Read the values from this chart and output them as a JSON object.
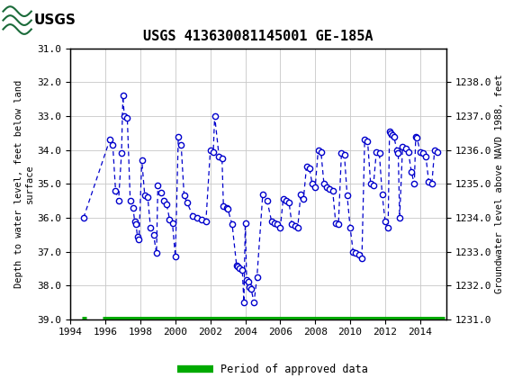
{
  "title": "USGS 413630081145001 GE-185A",
  "ylabel_left": "Depth to water level, feet below land\nsurface",
  "ylabel_right": "Groundwater level above NAVD 1988, feet",
  "ylim_left": [
    39.0,
    31.0
  ],
  "ylim_right": [
    1231.0,
    1239.0
  ],
  "xlim": [
    1994,
    2015.5
  ],
  "yticks_left": [
    31.0,
    32.0,
    33.0,
    34.0,
    35.0,
    36.0,
    37.0,
    38.0,
    39.0
  ],
  "yticks_right": [
    1231.0,
    1232.0,
    1233.0,
    1234.0,
    1235.0,
    1236.0,
    1237.0,
    1238.0
  ],
  "xticks": [
    1994,
    1996,
    1998,
    2000,
    2002,
    2004,
    2006,
    2008,
    2010,
    2012,
    2014
  ],
  "header_color": "#1b6b3a",
  "data_color": "#0000cc",
  "approved_color": "#00aa00",
  "background_color": "#ffffff",
  "grid_color": "#c8c8c8",
  "data_points": [
    [
      1994.75,
      36.0
    ],
    [
      1996.25,
      33.7
    ],
    [
      1996.42,
      33.85
    ],
    [
      1996.58,
      35.2
    ],
    [
      1996.75,
      35.5
    ],
    [
      1996.92,
      34.1
    ],
    [
      1997.0,
      32.4
    ],
    [
      1997.08,
      33.0
    ],
    [
      1997.25,
      33.05
    ],
    [
      1997.42,
      35.5
    ],
    [
      1997.58,
      35.7
    ],
    [
      1997.67,
      36.1
    ],
    [
      1997.75,
      36.2
    ],
    [
      1997.83,
      36.55
    ],
    [
      1997.92,
      36.65
    ],
    [
      1998.08,
      34.3
    ],
    [
      1998.25,
      35.35
    ],
    [
      1998.42,
      35.4
    ],
    [
      1998.58,
      36.3
    ],
    [
      1998.75,
      36.5
    ],
    [
      1998.92,
      37.05
    ],
    [
      1999.0,
      35.05
    ],
    [
      1999.17,
      35.25
    ],
    [
      1999.33,
      35.5
    ],
    [
      1999.5,
      35.6
    ],
    [
      1999.67,
      36.05
    ],
    [
      1999.83,
      36.15
    ],
    [
      2000.0,
      37.15
    ],
    [
      2000.17,
      33.6
    ],
    [
      2000.33,
      33.85
    ],
    [
      2000.5,
      35.35
    ],
    [
      2000.67,
      35.55
    ],
    [
      2001.0,
      35.95
    ],
    [
      2001.25,
      36.0
    ],
    [
      2001.5,
      36.05
    ],
    [
      2001.75,
      36.1
    ],
    [
      2002.0,
      34.0
    ],
    [
      2002.17,
      34.05
    ],
    [
      2002.25,
      33.0
    ],
    [
      2002.5,
      34.2
    ],
    [
      2002.67,
      34.25
    ],
    [
      2002.75,
      35.65
    ],
    [
      2002.92,
      35.7
    ],
    [
      2003.0,
      35.75
    ],
    [
      2003.25,
      36.2
    ],
    [
      2003.5,
      37.4
    ],
    [
      2003.58,
      37.45
    ],
    [
      2003.67,
      37.5
    ],
    [
      2003.83,
      37.55
    ],
    [
      2003.92,
      38.5
    ],
    [
      2004.0,
      36.15
    ],
    [
      2004.08,
      37.85
    ],
    [
      2004.17,
      37.9
    ],
    [
      2004.25,
      38.05
    ],
    [
      2004.33,
      38.1
    ],
    [
      2004.5,
      38.5
    ],
    [
      2004.67,
      37.75
    ],
    [
      2005.0,
      35.3
    ],
    [
      2005.25,
      35.5
    ],
    [
      2005.5,
      36.1
    ],
    [
      2005.67,
      36.15
    ],
    [
      2005.83,
      36.2
    ],
    [
      2006.0,
      36.3
    ],
    [
      2006.17,
      35.45
    ],
    [
      2006.33,
      35.5
    ],
    [
      2006.5,
      35.55
    ],
    [
      2006.67,
      36.2
    ],
    [
      2006.83,
      36.25
    ],
    [
      2007.0,
      36.3
    ],
    [
      2007.17,
      35.3
    ],
    [
      2007.33,
      35.45
    ],
    [
      2007.5,
      34.5
    ],
    [
      2007.67,
      34.55
    ],
    [
      2007.83,
      35.0
    ],
    [
      2008.0,
      35.1
    ],
    [
      2008.17,
      34.0
    ],
    [
      2008.33,
      34.05
    ],
    [
      2008.5,
      35.0
    ],
    [
      2008.67,
      35.1
    ],
    [
      2008.83,
      35.15
    ],
    [
      2009.0,
      35.2
    ],
    [
      2009.17,
      36.15
    ],
    [
      2009.33,
      36.2
    ],
    [
      2009.5,
      34.1
    ],
    [
      2009.67,
      34.15
    ],
    [
      2009.83,
      35.35
    ],
    [
      2010.0,
      36.3
    ],
    [
      2010.17,
      37.0
    ],
    [
      2010.33,
      37.05
    ],
    [
      2010.5,
      37.1
    ],
    [
      2010.67,
      37.2
    ],
    [
      2010.83,
      33.7
    ],
    [
      2011.0,
      33.75
    ],
    [
      2011.17,
      35.0
    ],
    [
      2011.33,
      35.05
    ],
    [
      2011.5,
      34.05
    ],
    [
      2011.67,
      34.1
    ],
    [
      2011.83,
      35.3
    ],
    [
      2012.0,
      36.1
    ],
    [
      2012.17,
      36.3
    ],
    [
      2012.25,
      33.45
    ],
    [
      2012.33,
      33.5
    ],
    [
      2012.42,
      33.55
    ],
    [
      2012.5,
      33.6
    ],
    [
      2012.67,
      34.0
    ],
    [
      2012.75,
      34.1
    ],
    [
      2012.83,
      36.0
    ],
    [
      2013.0,
      33.9
    ],
    [
      2013.17,
      33.95
    ],
    [
      2013.33,
      34.05
    ],
    [
      2013.5,
      34.65
    ],
    [
      2013.67,
      35.0
    ],
    [
      2013.75,
      33.6
    ],
    [
      2013.83,
      33.65
    ],
    [
      2014.0,
      34.05
    ],
    [
      2014.17,
      34.1
    ],
    [
      2014.33,
      34.2
    ],
    [
      2014.5,
      34.95
    ],
    [
      2014.67,
      35.0
    ],
    [
      2014.83,
      34.0
    ],
    [
      2015.0,
      34.05
    ]
  ],
  "approved_bar_start": 1995.83,
  "approved_bar_end": 2015.4,
  "approved_small_start": 1994.67,
  "approved_small_end": 1994.92
}
